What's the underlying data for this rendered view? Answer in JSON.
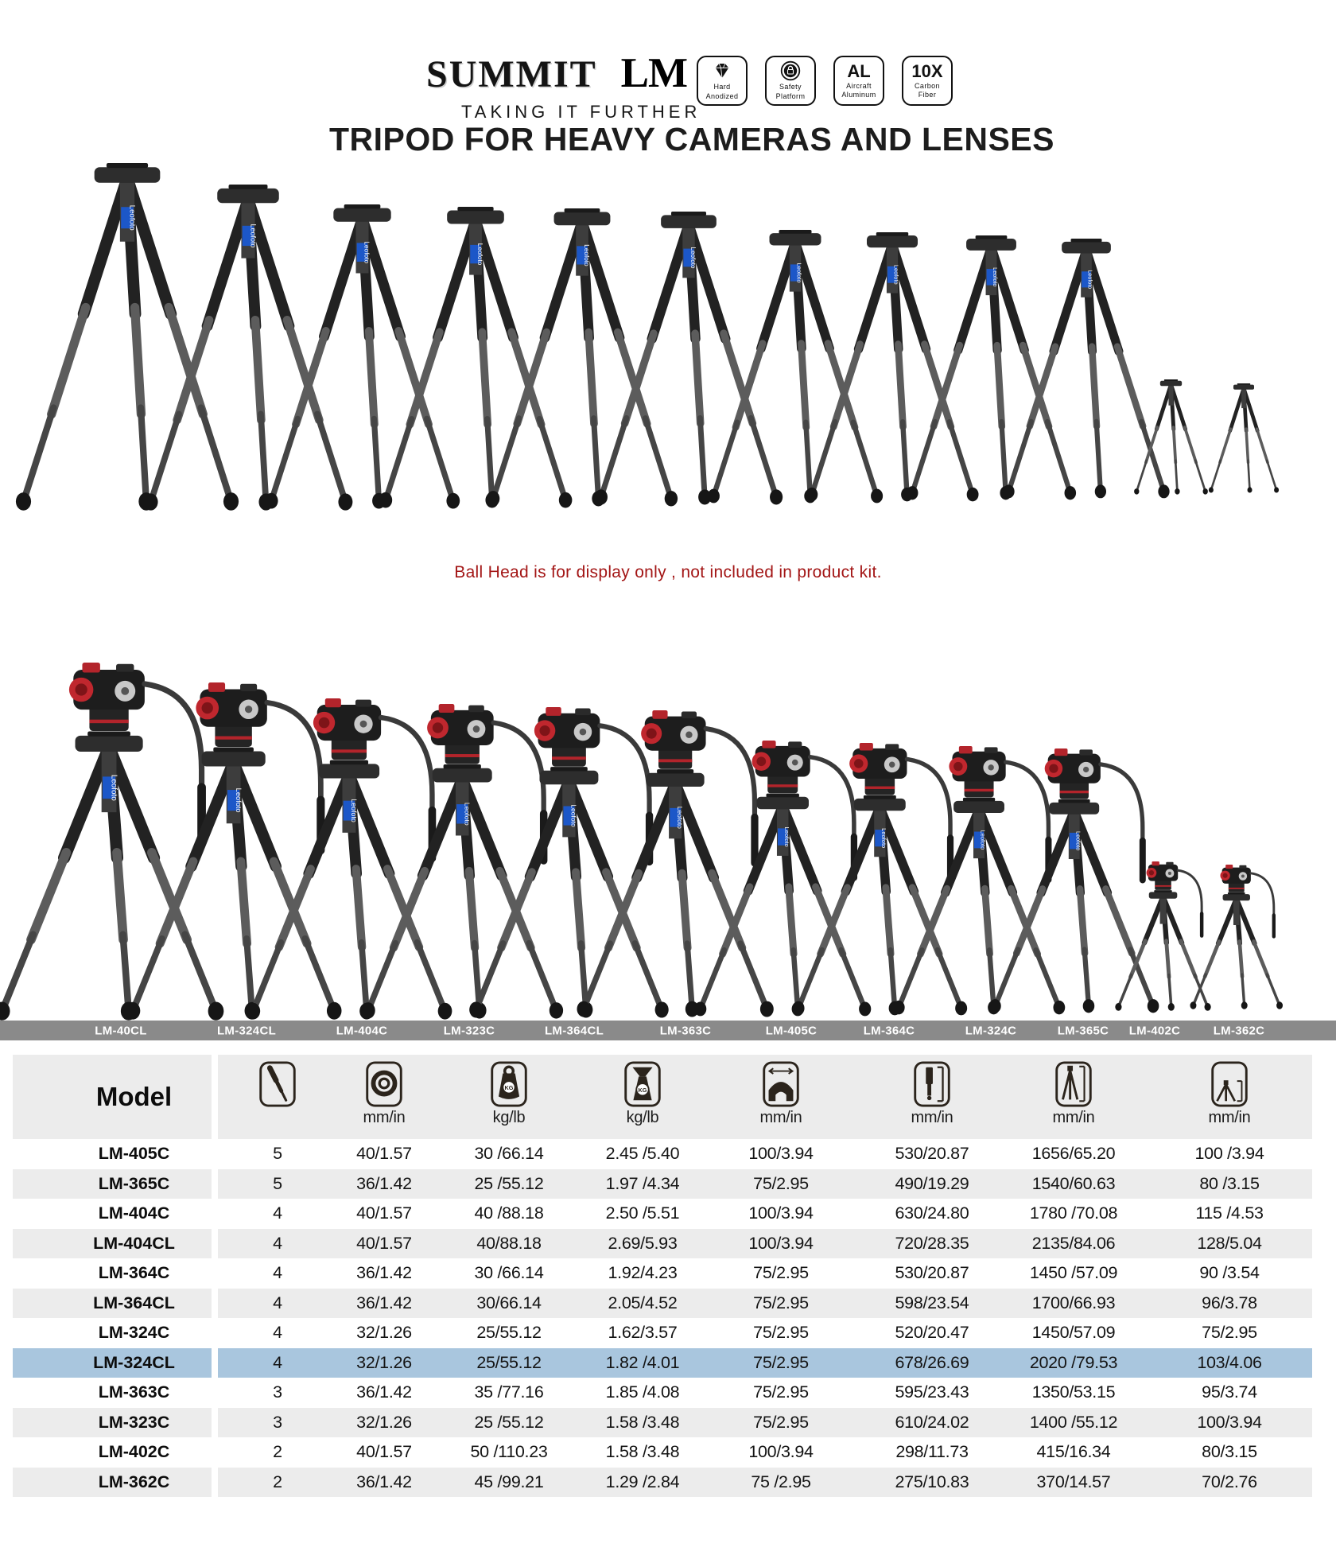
{
  "header": {
    "brand": "SUMMIT",
    "series": "LM",
    "tagline": "TAKING IT FURTHER",
    "badges": [
      {
        "icon": "diamond-icon",
        "big": "",
        "line1": "Hard",
        "line2": "Anodized"
      },
      {
        "icon": "lock-icon",
        "big": "",
        "line1": "Safety",
        "line2": "Platform"
      },
      {
        "icon": "",
        "big": "AL",
        "line1": "Aircraft",
        "line2": "Aluminum"
      },
      {
        "icon": "",
        "big": "10X",
        "line1": "Carbon",
        "line2": "Fiber"
      }
    ],
    "title": "TRIPOD FOR HEAVY CAMERAS AND LENSES"
  },
  "note": "Ball Head is for display only , not included in product kit.",
  "tripod_label": "Leofoto",
  "model_bar": [
    "LM-40CL",
    "LM-324CL",
    "LM-404C",
    "LM-323C",
    "LM-364CL",
    "LM-363C",
    "LM-405C",
    "LM-364C",
    "LM-324C",
    "LM-365C",
    "LM-402C",
    "LM-362C"
  ],
  "table": {
    "model_header": "Model",
    "columns": [
      {
        "icon": "leg-sections-icon",
        "unit": ""
      },
      {
        "icon": "tube-diameter-icon",
        "unit": "mm/in"
      },
      {
        "icon": "load-capacity-icon",
        "unit": "kg/lb"
      },
      {
        "icon": "weight-icon",
        "unit": "kg/lb"
      },
      {
        "icon": "platform-width-icon",
        "unit": "mm/in"
      },
      {
        "icon": "center-column-icon",
        "unit": "mm/in"
      },
      {
        "icon": "max-height-icon",
        "unit": "mm/in"
      },
      {
        "icon": "min-height-icon",
        "unit": "mm/in"
      }
    ],
    "rows": [
      {
        "model": "LM-405C",
        "highlight": false,
        "values": [
          "5",
          "40/1.57",
          "30 /66.14",
          "2.45 /5.40",
          "100/3.94",
          "530/20.87",
          "1656/65.20",
          "100 /3.94"
        ]
      },
      {
        "model": "LM-365C",
        "highlight": false,
        "values": [
          "5",
          "36/1.42",
          "25 /55.12",
          "1.97 /4.34",
          "75/2.95",
          "490/19.29",
          "1540/60.63",
          "80 /3.15"
        ]
      },
      {
        "model": "LM-404C",
        "highlight": false,
        "values": [
          "4",
          "40/1.57",
          "40 /88.18",
          "2.50 /5.51",
          "100/3.94",
          "630/24.80",
          "1780 /70.08",
          "115 /4.53"
        ]
      },
      {
        "model": "LM-404CL",
        "highlight": false,
        "values": [
          "4",
          "40/1.57",
          "40/88.18",
          "2.69/5.93",
          "100/3.94",
          "720/28.35",
          "2135/84.06",
          "128/5.04"
        ]
      },
      {
        "model": "LM-364C",
        "highlight": false,
        "values": [
          "4",
          "36/1.42",
          "30 /66.14",
          "1.92/4.23",
          "75/2.95",
          "530/20.87",
          "1450 /57.09",
          "90 /3.54"
        ]
      },
      {
        "model": "LM-364CL",
        "highlight": false,
        "values": [
          "4",
          "36/1.42",
          "30/66.14",
          "2.05/4.52",
          "75/2.95",
          "598/23.54",
          "1700/66.93",
          "96/3.78"
        ]
      },
      {
        "model": "LM-324C",
        "highlight": false,
        "values": [
          "4",
          "32/1.26",
          "25/55.12",
          "1.62/3.57",
          "75/2.95",
          "520/20.47",
          "1450/57.09",
          "75/2.95"
        ]
      },
      {
        "model": "LM-324CL",
        "highlight": true,
        "values": [
          "4",
          "32/1.26",
          "25/55.12",
          "1.82 /4.01",
          "75/2.95",
          "678/26.69",
          "2020 /79.53",
          "103/4.06"
        ]
      },
      {
        "model": "LM-363C",
        "highlight": false,
        "values": [
          "3",
          "36/1.42",
          "35 /77.16",
          "1.85 /4.08",
          "75/2.95",
          "595/23.43",
          "1350/53.15",
          "95/3.74"
        ]
      },
      {
        "model": "LM-323C",
        "highlight": false,
        "values": [
          "3",
          "32/1.26",
          "25 /55.12",
          "1.58 /3.48",
          "75/2.95",
          "610/24.02",
          "1400 /55.12",
          "100/3.94"
        ]
      },
      {
        "model": "LM-402C",
        "highlight": false,
        "values": [
          "2",
          "40/1.57",
          "50 /110.23",
          "1.58 /3.48",
          "100/3.94",
          "298/11.73",
          "415/16.34",
          "80/3.15"
        ]
      },
      {
        "model": "LM-362C",
        "highlight": false,
        "values": [
          "2",
          "36/1.42",
          "45 /99.21",
          "1.29 /2.84",
          "75 /2.95",
          "275/10.83",
          "370/14.57",
          "70/2.76"
        ]
      }
    ]
  },
  "colors": {
    "note_red": "#a31616",
    "model_bar_bg": "#8a8a8a",
    "row_stripe": "#ececec",
    "highlight_row": "#a9c6de",
    "leofoto_blue": "#1c57c8",
    "head_red": "#c0272e"
  }
}
